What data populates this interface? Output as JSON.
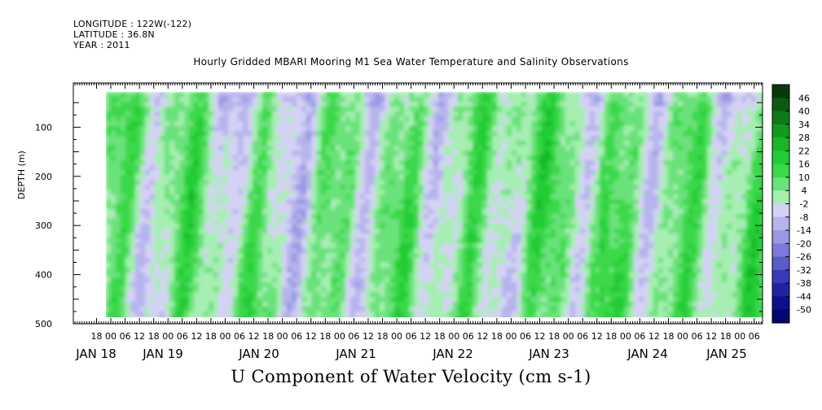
{
  "header": {
    "longitude": "LONGITUDE : 122W(-122)",
    "latitude": "LATITUDE : 36.8N",
    "year": "YEAR : 2011"
  },
  "title": "Hourly Gridded MBARI Mooring M1 Sea Water Temperature and Salinity Observations",
  "chart_data": {
    "type": "heatmap",
    "title": "Hourly Gridded MBARI Mooring M1 Sea Water Temperature and Salinity Observations",
    "xlabel": "U Component of Water Velocity (cm s-1)",
    "ylabel": "DEPTH (m)",
    "y_reversed": true,
    "ylim": [
      500,
      10
    ],
    "y_ticks": [
      100,
      200,
      300,
      400,
      500
    ],
    "x_hour_ticks": [
      "18",
      "00",
      "06",
      "12",
      "18",
      "00",
      "06",
      "12",
      "18",
      "00",
      "06",
      "12",
      "18",
      "00",
      "06",
      "12",
      "18",
      "00",
      "06",
      "12",
      "18",
      "00",
      "06",
      "12",
      "18",
      "00",
      "06",
      "12",
      "18",
      "00",
      "06",
      "12",
      "18",
      "00",
      "06",
      "12",
      "18",
      "00",
      "06",
      "12",
      "18",
      "00",
      "06",
      "12",
      "18",
      "00",
      "06",
      "12"
    ],
    "x_date_labels": [
      "JAN 18",
      "JAN 19",
      "JAN 20",
      "JAN 21",
      "JAN 22",
      "JAN 23",
      "JAN 24",
      "JAN 25"
    ],
    "colorbar_labels": [
      "46",
      "40",
      "34",
      "28",
      "22",
      "16",
      "10",
      "4",
      "-2",
      "-8",
      "-14",
      "-20",
      "-26",
      "-32",
      "-38",
      "-44",
      "-50"
    ],
    "colorbar_colors": [
      "#063a0e",
      "#0a5a14",
      "#0e7a1a",
      "#129a20",
      "#18b628",
      "#22cc34",
      "#3ad84a",
      "#6ae27a",
      "#a6eeb2",
      "#d4d2f4",
      "#b6b4ec",
      "#9a98e2",
      "#7c7ad8",
      "#5a5ac8",
      "#3a3ab6",
      "#2222a0",
      "#10108a",
      "#060670"
    ],
    "data_columns": [
      {
        "time": "JAN 18 06",
        "dominant": "negative"
      },
      {
        "time": "JAN 18 18",
        "dominant": "mixed"
      },
      {
        "time": "JAN 19 06",
        "dominant": "positive"
      },
      {
        "time": "JAN 19 18",
        "dominant": "negative"
      },
      {
        "time": "JAN 20 06",
        "dominant": "positive"
      },
      {
        "time": "JAN 20 18",
        "dominant": "positive"
      },
      {
        "time": "JAN 21 06",
        "dominant": "negative"
      },
      {
        "time": "JAN 21 18",
        "dominant": "positive"
      },
      {
        "time": "JAN 22 06",
        "dominant": "negative"
      },
      {
        "time": "JAN 22 18",
        "dominant": "positive"
      },
      {
        "time": "JAN 23 06",
        "dominant": "negative"
      },
      {
        "time": "JAN 23 18",
        "dominant": "positive"
      },
      {
        "time": "JAN 24 06",
        "dominant": "mixed"
      },
      {
        "time": "JAN 24 18",
        "dominant": "positive"
      },
      {
        "time": "JAN 25 06",
        "dominant": "positive"
      }
    ]
  }
}
